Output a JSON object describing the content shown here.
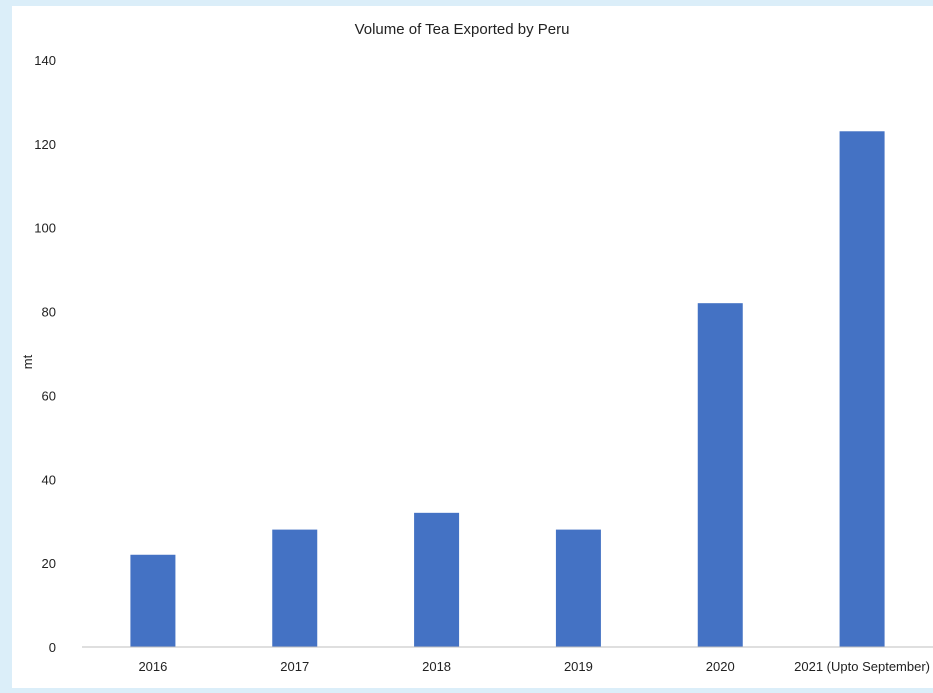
{
  "chart_data": {
    "type": "bar",
    "title": "Volume of Tea Exported by Peru",
    "xlabel": "",
    "ylabel": "mt",
    "categories": [
      "2016",
      "2017",
      "2018",
      "2019",
      "2020",
      "2021 (Upto September)"
    ],
    "series": [
      {
        "values": [
          22,
          28,
          32,
          28,
          82,
          123
        ]
      }
    ],
    "ylim": [
      0,
      140
    ],
    "yticks": [
      "0",
      "20",
      "40",
      "60",
      "80",
      "100",
      "120",
      "140"
    ],
    "grid": false,
    "legend": "none",
    "colors": {
      "bar": "#4472c4",
      "axis": "#bfbfbf",
      "background": "#dbeef9"
    }
  }
}
